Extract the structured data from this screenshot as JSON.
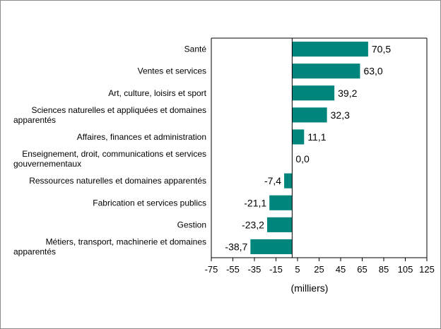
{
  "chart_data": {
    "type": "bar",
    "orientation": "horizontal",
    "categories": [
      [
        "Santé"
      ],
      [
        "Ventes et services"
      ],
      [
        "Art, culture, loisirs et sport"
      ],
      [
        "Sciences naturelles et appliquées et domaines",
        "apparentés"
      ],
      [
        "Affaires, finances et administration"
      ],
      [
        "Enseignement, droit, communications et services",
        "gouvernementaux"
      ],
      [
        "Ressources naturelles et domaines apparentés"
      ],
      [
        "Fabrication et services publics"
      ],
      [
        "Gestion"
      ],
      [
        "Métiers, transport, machinerie et domaines",
        "apparentés"
      ]
    ],
    "values": [
      70.5,
      63.0,
      39.2,
      32.3,
      11.1,
      0.0,
      -7.4,
      -21.1,
      -23.2,
      -38.7
    ],
    "value_labels": [
      "70,5",
      "63,0",
      "39,2",
      "32,3",
      "11,1",
      "0,0",
      "-7,4",
      "-21,1",
      "-23,2",
      "-38,7"
    ],
    "xlim": [
      -75,
      125
    ],
    "ticks": [
      -75,
      -55,
      -35,
      -15,
      5,
      25,
      45,
      65,
      85,
      105,
      125
    ],
    "xlabel": "(milliers)",
    "title": "",
    "bar_color": "#00857c"
  }
}
